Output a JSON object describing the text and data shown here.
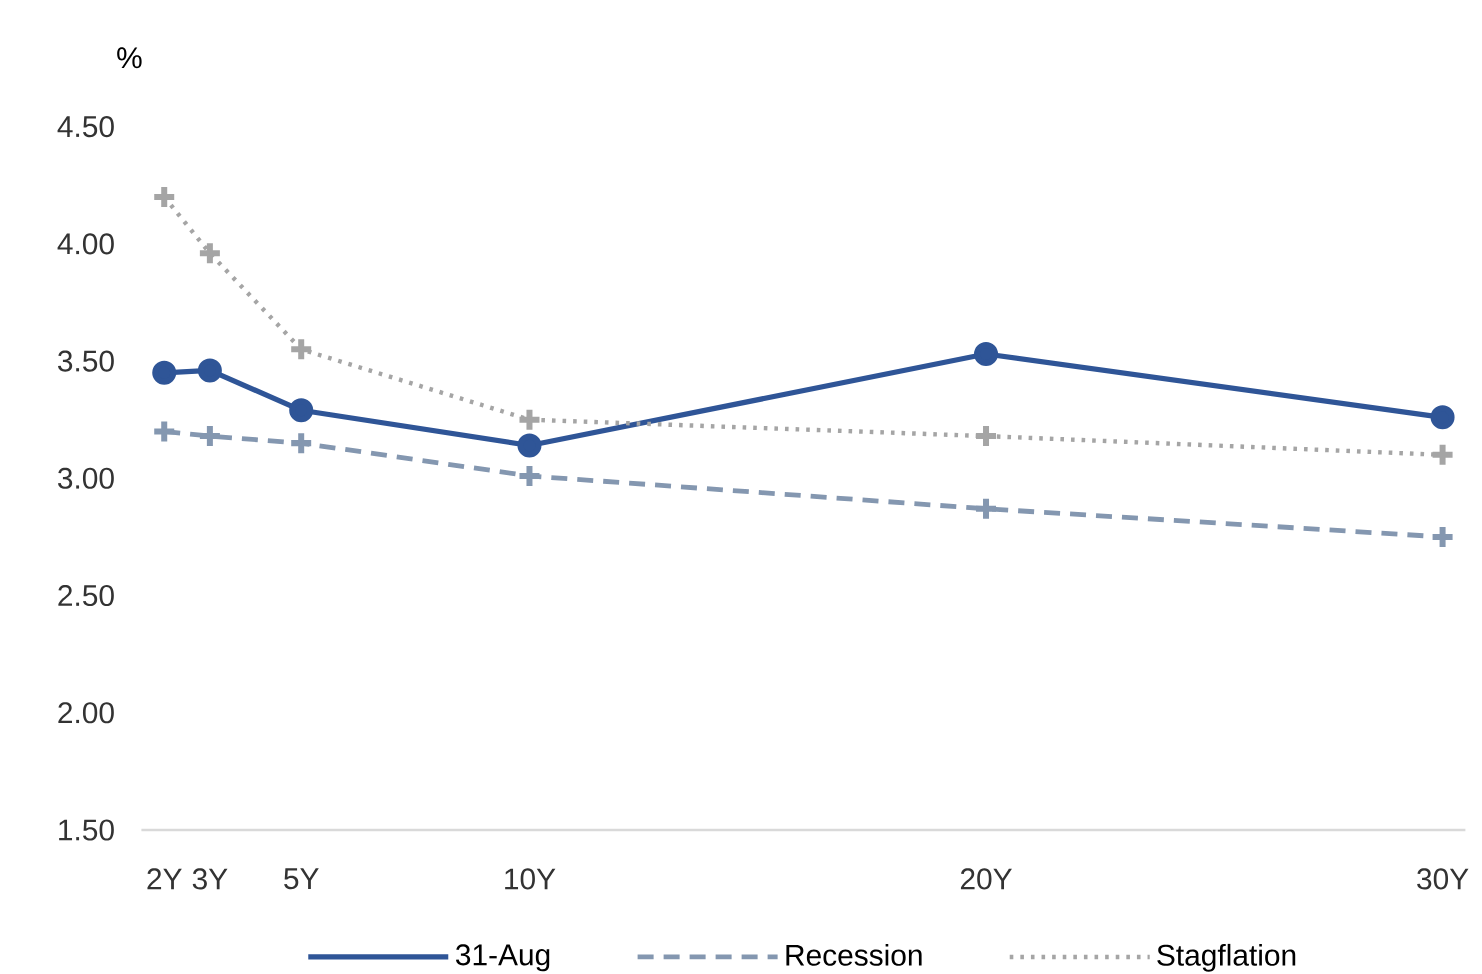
{
  "chart_data": {
    "type": "line",
    "ylabel": "%",
    "legend": "bottom",
    "x": [
      2,
      3,
      5,
      10,
      20,
      30
    ],
    "xlim": [
      1.5,
      30.5
    ],
    "xticks": [
      {
        "value": 2,
        "label": "2Y"
      },
      {
        "value": 3,
        "label": "3Y"
      },
      {
        "value": 5,
        "label": "5Y"
      },
      {
        "value": 10,
        "label": "10Y"
      },
      {
        "value": 20,
        "label": "20Y"
      },
      {
        "value": 30,
        "label": "30Y"
      }
    ],
    "ylim": [
      1.5,
      4.5
    ],
    "yticks": [
      {
        "value": 1.5,
        "label": "1.50"
      },
      {
        "value": 2,
        "label": "2.00"
      },
      {
        "value": 2.5,
        "label": "2.50"
      },
      {
        "value": 3,
        "label": "3.00"
      },
      {
        "value": 3.5,
        "label": "3.50"
      },
      {
        "value": 4,
        "label": "4.00"
      },
      {
        "value": 4.5,
        "label": "4.50"
      }
    ],
    "series": [
      {
        "name": "31-Aug",
        "color": "#2f5597",
        "values": [
          3.45,
          3.46,
          3.29,
          3.14,
          3.53,
          3.26
        ],
        "marker": "circle",
        "line_style": "solid"
      },
      {
        "name": "Recession",
        "color": "#8497b0",
        "values": [
          3.2,
          3.18,
          3.15,
          3.01,
          2.87,
          2.75
        ],
        "marker": "cross",
        "line_style": "dashed"
      },
      {
        "name": "Stagflation",
        "color": "#a5a5a5",
        "values": [
          4.2,
          3.96,
          3.55,
          3.25,
          3.18,
          3.1
        ],
        "marker": "cross",
        "line_style": "dotted"
      }
    ]
  }
}
